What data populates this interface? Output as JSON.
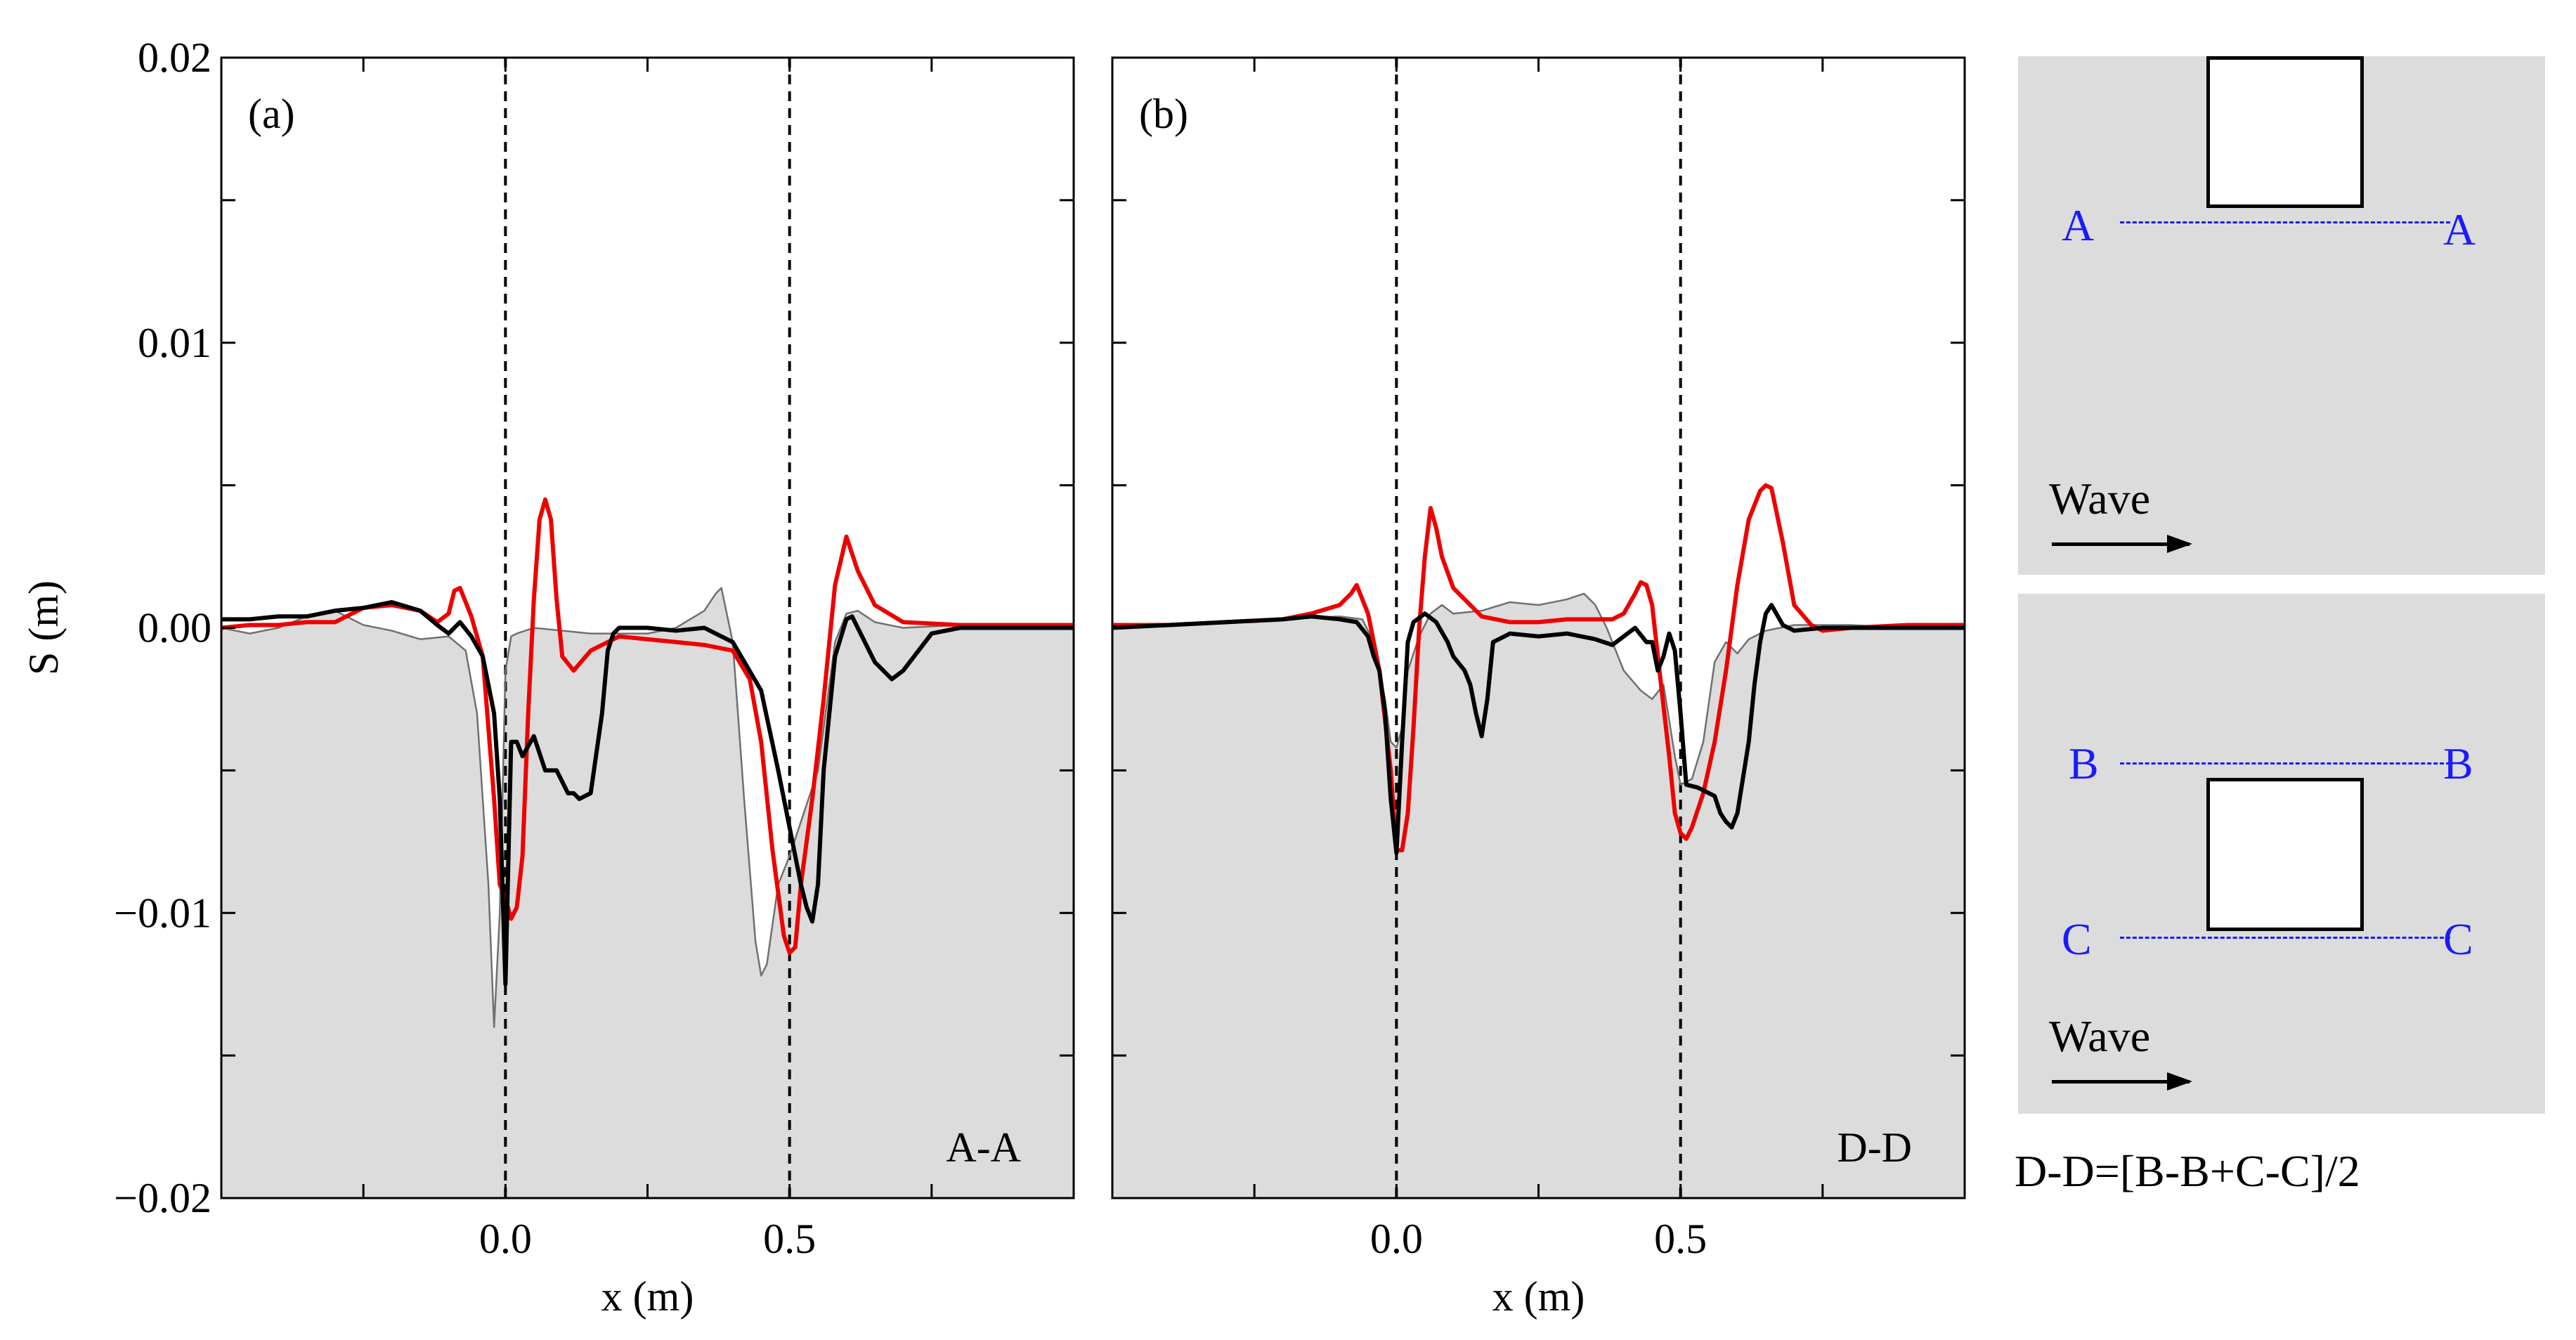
{
  "chart_data": [
    {
      "type": "line",
      "panel_label": "(a)",
      "section_label": "A-A",
      "xlabel": "x (m)",
      "ylabel": "S (m)",
      "xlim": [
        -0.5,
        1.0
      ],
      "ylim": [
        -0.02,
        0.02
      ],
      "x_ticks": [
        0.0,
        0.5
      ],
      "x_tick_labels": [
        "0.0",
        "0.5"
      ],
      "y_ticks": [
        -0.02,
        -0.01,
        0.0,
        0.01,
        0.02
      ],
      "y_tick_labels": [
        "−0.02",
        "−0.01",
        "0.00",
        "0.01",
        "0.02"
      ],
      "vlines": [
        0.0,
        0.5
      ],
      "series": [
        {
          "name": "gray filled",
          "color": "#707070",
          "fill": "#dcdcdc",
          "x": [
            -0.5,
            -0.45,
            -0.4,
            -0.35,
            -0.3,
            -0.25,
            -0.2,
            -0.15,
            -0.1,
            -0.07,
            -0.05,
            -0.03,
            -0.02,
            -0.01,
            0.0,
            0.01,
            0.02,
            0.05,
            0.1,
            0.15,
            0.2,
            0.25,
            0.3,
            0.35,
            0.37,
            0.38,
            0.4,
            0.42,
            0.44,
            0.45,
            0.46,
            0.48,
            0.5,
            0.52,
            0.55,
            0.58,
            0.6,
            0.62,
            0.65,
            0.7,
            0.8,
            0.9,
            1.0
          ],
          "y": [
            0.0,
            -0.0002,
            0.0,
            0.0004,
            0.0006,
            0.0001,
            -0.0001,
            -0.0004,
            -0.0003,
            -0.0008,
            -0.003,
            -0.009,
            -0.014,
            -0.01,
            -0.0015,
            -0.0003,
            -0.0002,
            0.0,
            -0.0001,
            -0.0002,
            -0.0002,
            -0.0002,
            0.0,
            0.0006,
            0.0012,
            0.0014,
            -0.0005,
            -0.006,
            -0.011,
            -0.0122,
            -0.0118,
            -0.009,
            -0.008,
            -0.0068,
            -0.005,
            -0.0005,
            0.0005,
            0.0006,
            0.0002,
            0.0,
            0.0001,
            0.0,
            0.0
          ]
        },
        {
          "name": "red",
          "color": "#ee0000",
          "x": [
            -0.5,
            -0.45,
            -0.4,
            -0.35,
            -0.3,
            -0.25,
            -0.2,
            -0.15,
            -0.12,
            -0.1,
            -0.09,
            -0.08,
            -0.06,
            -0.04,
            -0.02,
            -0.01,
            0.0,
            0.01,
            0.02,
            0.03,
            0.04,
            0.05,
            0.06,
            0.07,
            0.08,
            0.09,
            0.1,
            0.12,
            0.15,
            0.2,
            0.25,
            0.3,
            0.35,
            0.4,
            0.43,
            0.45,
            0.47,
            0.49,
            0.5,
            0.51,
            0.52,
            0.54,
            0.56,
            0.58,
            0.6,
            0.62,
            0.65,
            0.7,
            0.8,
            0.9,
            1.0
          ],
          "y": [
            0.0,
            0.0001,
            0.0001,
            0.0002,
            0.0002,
            0.0007,
            0.0008,
            0.0006,
            0.0002,
            0.0005,
            0.0013,
            0.0014,
            0.0004,
            -0.001,
            -0.006,
            -0.009,
            -0.0095,
            -0.0102,
            -0.0098,
            -0.008,
            -0.003,
            0.001,
            0.0038,
            0.0045,
            0.0038,
            0.001,
            -0.001,
            -0.0015,
            -0.0008,
            -0.0003,
            -0.0004,
            -0.0005,
            -0.0006,
            -0.0008,
            -0.0018,
            -0.004,
            -0.0078,
            -0.0108,
            -0.0114,
            -0.0112,
            -0.009,
            -0.006,
            -0.0025,
            0.0015,
            0.0032,
            0.002,
            0.0008,
            0.0002,
            0.0001,
            0.0001,
            0.0001
          ]
        },
        {
          "name": "black",
          "color": "#000000",
          "x": [
            -0.5,
            -0.45,
            -0.4,
            -0.35,
            -0.3,
            -0.25,
            -0.2,
            -0.15,
            -0.12,
            -0.1,
            -0.08,
            -0.06,
            -0.04,
            -0.02,
            -0.01,
            0.0,
            0.01,
            0.02,
            0.03,
            0.05,
            0.07,
            0.09,
            0.1,
            0.11,
            0.12,
            0.13,
            0.15,
            0.17,
            0.18,
            0.19,
            0.2,
            0.22,
            0.25,
            0.3,
            0.35,
            0.4,
            0.45,
            0.48,
            0.5,
            0.52,
            0.53,
            0.54,
            0.55,
            0.56,
            0.58,
            0.6,
            0.61,
            0.62,
            0.65,
            0.68,
            0.7,
            0.75,
            0.8,
            0.9,
            1.0
          ],
          "y": [
            0.0003,
            0.0003,
            0.0004,
            0.0004,
            0.0006,
            0.0007,
            0.0009,
            0.0006,
            0.0001,
            -0.0002,
            0.0002,
            -0.0003,
            -0.001,
            -0.003,
            -0.006,
            -0.0125,
            -0.004,
            -0.004,
            -0.0045,
            -0.0038,
            -0.005,
            -0.005,
            -0.0054,
            -0.0058,
            -0.0058,
            -0.006,
            -0.0058,
            -0.003,
            -0.0008,
            -0.0002,
            0.0,
            0.0,
            0.0,
            -0.0001,
            0.0,
            -0.0005,
            -0.0022,
            -0.005,
            -0.007,
            -0.009,
            -0.0098,
            -0.0103,
            -0.009,
            -0.005,
            -0.001,
            0.0003,
            0.0004,
            0.0,
            -0.0012,
            -0.0018,
            -0.0015,
            -0.0002,
            0.0,
            0.0,
            0.0
          ]
        }
      ]
    },
    {
      "type": "line",
      "panel_label": "(b)",
      "section_label": "D-D",
      "xlabel": "x (m)",
      "ylabel": "S (m)",
      "xlim": [
        -0.5,
        1.0
      ],
      "ylim": [
        -0.02,
        0.02
      ],
      "x_ticks": [
        0.0,
        0.5
      ],
      "x_tick_labels": [
        "0.0",
        "0.5"
      ],
      "y_ticks": [
        -0.02,
        -0.01,
        0.0,
        0.01,
        0.02
      ],
      "vlines": [
        0.0,
        0.5
      ],
      "series": [
        {
          "name": "gray filled",
          "color": "#707070",
          "fill": "#dcdcdc",
          "x": [
            -0.5,
            -0.4,
            -0.3,
            -0.2,
            -0.1,
            -0.06,
            -0.04,
            -0.02,
            -0.01,
            0.0,
            0.01,
            0.02,
            0.04,
            0.06,
            0.08,
            0.1,
            0.15,
            0.2,
            0.25,
            0.3,
            0.33,
            0.35,
            0.37,
            0.4,
            0.43,
            0.45,
            0.47,
            0.49,
            0.5,
            0.52,
            0.54,
            0.56,
            0.58,
            0.6,
            0.62,
            0.65,
            0.7,
            0.8,
            0.9,
            1.0
          ],
          "y": [
            0.0,
            0.0001,
            0.0002,
            0.0003,
            0.0004,
            0.0003,
            -0.0005,
            -0.0025,
            -0.004,
            -0.0042,
            -0.0035,
            -0.0015,
            -0.0003,
            0.0005,
            0.0008,
            0.0005,
            0.0006,
            0.0009,
            0.0008,
            0.001,
            0.0012,
            0.0008,
            0.0,
            -0.0015,
            -0.0022,
            -0.0025,
            -0.002,
            -0.0045,
            -0.0055,
            -0.0053,
            -0.004,
            -0.0012,
            -0.0005,
            -0.0009,
            -0.0004,
            -0.0001,
            0.0001,
            0.0001,
            0.0,
            0.0
          ]
        },
        {
          "name": "red",
          "color": "#ee0000",
          "x": [
            -0.5,
            -0.4,
            -0.3,
            -0.2,
            -0.15,
            -0.1,
            -0.08,
            -0.07,
            -0.05,
            -0.03,
            -0.01,
            0.0,
            0.01,
            0.02,
            0.03,
            0.04,
            0.05,
            0.06,
            0.07,
            0.08,
            0.1,
            0.15,
            0.2,
            0.25,
            0.3,
            0.35,
            0.38,
            0.4,
            0.42,
            0.43,
            0.44,
            0.45,
            0.46,
            0.48,
            0.49,
            0.5,
            0.51,
            0.52,
            0.54,
            0.56,
            0.58,
            0.6,
            0.62,
            0.64,
            0.65,
            0.66,
            0.68,
            0.7,
            0.73,
            0.75,
            0.8,
            0.9,
            1.0
          ],
          "y": [
            0.0001,
            0.0001,
            0.0002,
            0.0003,
            0.0005,
            0.0008,
            0.0012,
            0.0015,
            0.0005,
            -0.0015,
            -0.005,
            -0.0078,
            -0.0078,
            -0.0065,
            -0.0035,
            0.0,
            0.0025,
            0.0042,
            0.0035,
            0.0025,
            0.0014,
            0.0004,
            0.0002,
            0.0002,
            0.0003,
            0.0003,
            0.0003,
            0.0005,
            0.0012,
            0.0016,
            0.0015,
            0.0008,
            -0.001,
            -0.0045,
            -0.0065,
            -0.0072,
            -0.0074,
            -0.007,
            -0.0058,
            -0.004,
            -0.0015,
            0.0015,
            0.0038,
            0.0048,
            0.005,
            0.0049,
            0.003,
            0.0008,
            0.0001,
            -0.0001,
            0.0,
            0.0001,
            0.0001
          ]
        },
        {
          "name": "black",
          "color": "#000000",
          "x": [
            -0.5,
            -0.4,
            -0.3,
            -0.2,
            -0.15,
            -0.1,
            -0.07,
            -0.05,
            -0.04,
            -0.03,
            -0.02,
            -0.01,
            0.0,
            0.01,
            0.02,
            0.03,
            0.05,
            0.07,
            0.09,
            0.1,
            0.12,
            0.13,
            0.14,
            0.15,
            0.16,
            0.17,
            0.2,
            0.25,
            0.3,
            0.35,
            0.38,
            0.4,
            0.42,
            0.44,
            0.45,
            0.46,
            0.47,
            0.48,
            0.49,
            0.5,
            0.51,
            0.53,
            0.55,
            0.56,
            0.57,
            0.58,
            0.59,
            0.6,
            0.62,
            0.63,
            0.64,
            0.65,
            0.66,
            0.68,
            0.7,
            0.75,
            0.8,
            0.9,
            1.0
          ],
          "y": [
            0.0,
            0.0001,
            0.0002,
            0.0003,
            0.0004,
            0.0003,
            0.0002,
            -0.0003,
            -0.001,
            -0.0015,
            -0.003,
            -0.006,
            -0.0079,
            -0.004,
            -0.0005,
            0.0002,
            0.0005,
            0.0002,
            -0.0005,
            -0.001,
            -0.0015,
            -0.002,
            -0.003,
            -0.0038,
            -0.0025,
            -0.0005,
            -0.0002,
            -0.0003,
            -0.0002,
            -0.0004,
            -0.0006,
            -0.0003,
            0.0,
            -0.0005,
            -0.0005,
            -0.0015,
            -0.001,
            -0.0002,
            -0.0008,
            -0.003,
            -0.0055,
            -0.0056,
            -0.0058,
            -0.0059,
            -0.0065,
            -0.0068,
            -0.007,
            -0.0065,
            -0.004,
            -0.002,
            -0.0005,
            0.0005,
            0.0008,
            0.0001,
            -0.0001,
            0.0,
            0.0,
            0.0,
            0.0
          ]
        }
      ]
    }
  ],
  "schematic": {
    "top": {
      "line_label": "A",
      "wave_label": "Wave"
    },
    "bottom": {
      "upper_line_label": "B",
      "lower_line_label": "C",
      "wave_label": "Wave"
    },
    "footnote": "D-D=[B-B+C-C]/2"
  },
  "colors": {
    "section_label": "#1a1aff",
    "panel_bg": "#dcdcdc"
  }
}
